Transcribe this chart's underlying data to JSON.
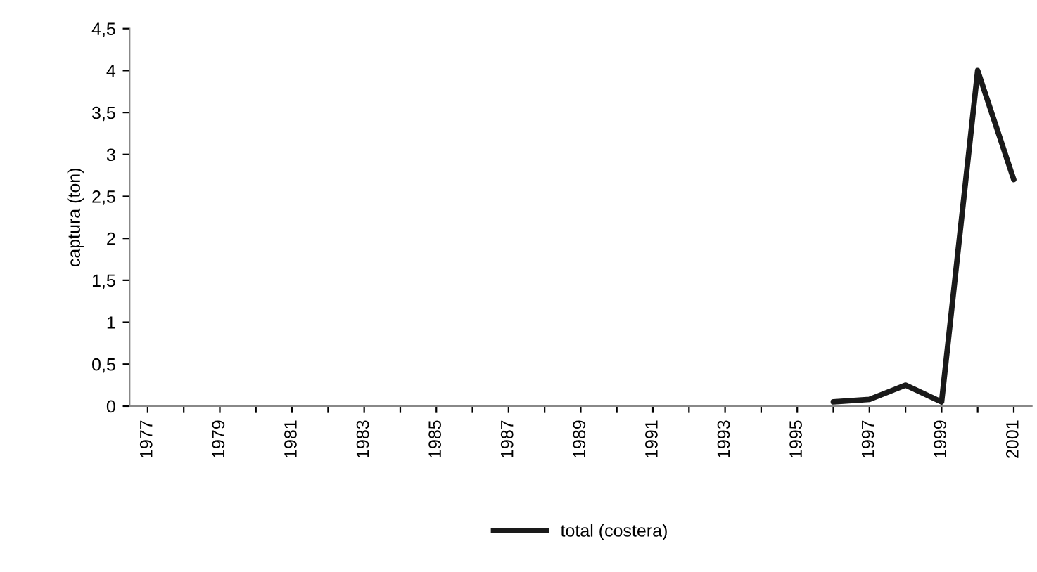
{
  "chart_data": {
    "type": "line",
    "ylabel": "captura (ton)",
    "categories": [
      "1977",
      null,
      "1979",
      null,
      "1981",
      null,
      "1983",
      null,
      "1985",
      null,
      "1987",
      null,
      "1989",
      null,
      "1991",
      null,
      "1993",
      null,
      "1995",
      null,
      "1997",
      null,
      "1999",
      null,
      "2001"
    ],
    "series": [
      {
        "name": "total (costera)",
        "color": "#1a1a1a",
        "values": [
          null,
          null,
          null,
          null,
          null,
          null,
          null,
          null,
          null,
          null,
          null,
          null,
          null,
          null,
          null,
          null,
          null,
          null,
          null,
          0.05,
          0.08,
          0.25,
          0.05,
          4.0,
          2.7
        ]
      }
    ],
    "ylim": [
      0,
      4.5
    ],
    "yticks": [
      0,
      {
        "value": 0.5,
        "label": "0,5"
      },
      1,
      {
        "value": 1.5,
        "label": "1,5"
      },
      2,
      {
        "value": 2.5,
        "label": "2,5"
      },
      3,
      {
        "value": 3.5,
        "label": "3,5"
      },
      4,
      {
        "value": 4.5,
        "label": "4,5"
      }
    ],
    "legend": "bottom",
    "marker": "none",
    "line_style": "solid",
    "grid": false
  }
}
